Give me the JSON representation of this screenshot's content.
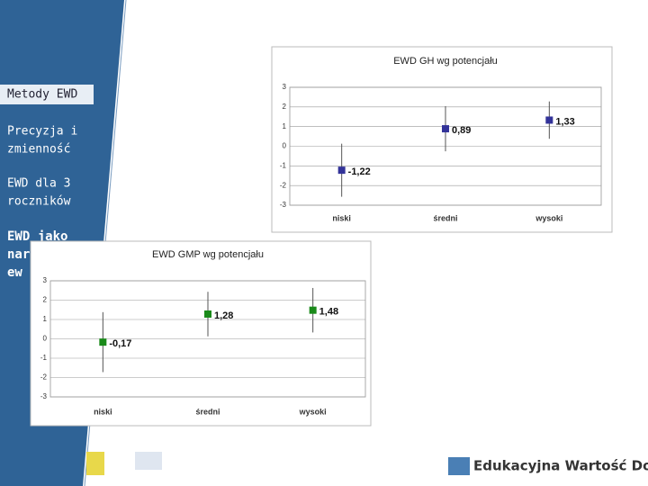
{
  "sidebar": {
    "items": [
      {
        "lines": [
          "Metody EWD"
        ]
      },
      {
        "lines": [
          "Precyzja i",
          "zmienność"
        ]
      },
      {
        "lines": [
          "EWD dla 3",
          "roczników"
        ]
      },
      {
        "lines": [
          "EWD jako",
          "nar",
          "ew"
        ],
        "active": true
      }
    ]
  },
  "footer": {
    "brand": "Edukacyjna Wartość Dodana"
  },
  "chart_data": [
    {
      "type": "errorbar",
      "title": "EWD GH wg potencjału",
      "categories": [
        "niski",
        "średni",
        "wysoki"
      ],
      "values": [
        -1.22,
        0.89,
        1.33
      ],
      "value_labels": [
        "-1,22",
        "0,89",
        "1,33"
      ],
      "errors": [
        1.35,
        1.15,
        0.95
      ],
      "color": "#333399",
      "ylim": [
        -3,
        3
      ],
      "yticks": [
        -3,
        -2,
        -1,
        0,
        1,
        2,
        3
      ],
      "grid": true
    },
    {
      "type": "errorbar",
      "title": "EWD GMP wg potencjału",
      "categories": [
        "niski",
        "średni",
        "wysoki"
      ],
      "values": [
        -0.17,
        1.28,
        1.48
      ],
      "value_labels": [
        "-0,17",
        "1,28",
        "1,48"
      ],
      "errors": [
        1.55,
        1.15,
        1.15
      ],
      "color": "#1a8a1a",
      "ylim": [
        -3,
        3
      ],
      "yticks": [
        -3,
        -2,
        -1,
        0,
        1,
        2,
        3
      ],
      "grid": true
    }
  ]
}
